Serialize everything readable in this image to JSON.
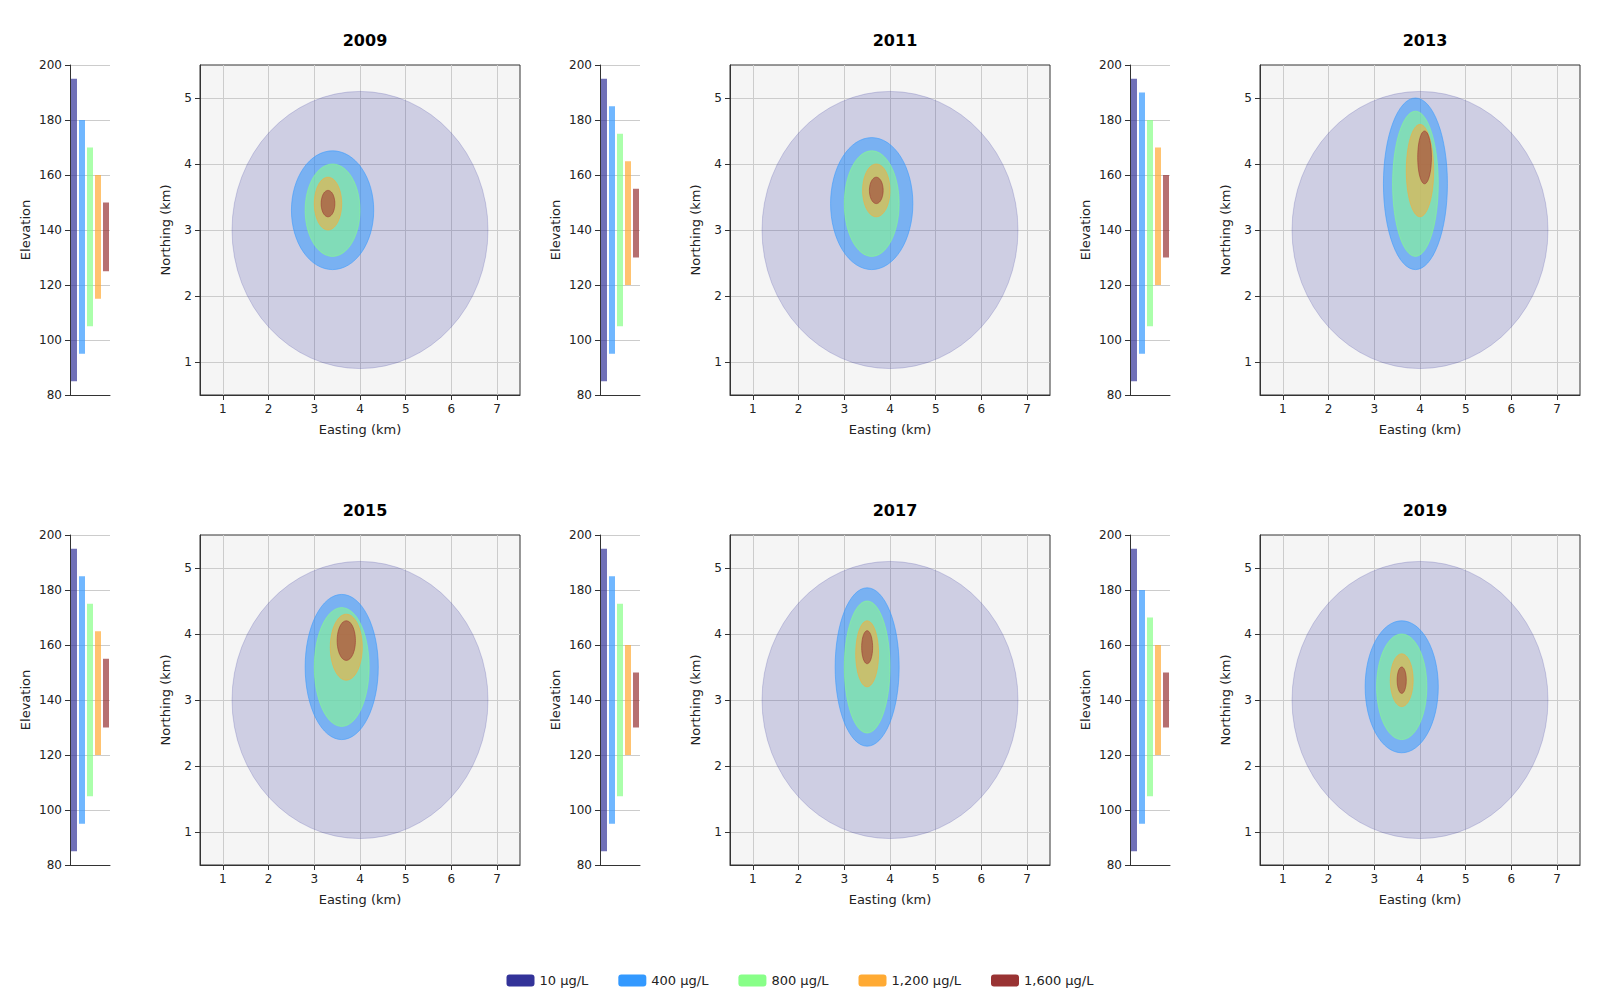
{
  "chart_data": {
    "type": "isosurface",
    "x_label": "Easting (km)",
    "y_label": "Northing (km)",
    "z_label": "Elevation",
    "xlim": [
      0.5,
      7.5
    ],
    "xticks": [
      1,
      2,
      3,
      4,
      5,
      6,
      7
    ],
    "ylim": [
      0.5,
      5.5
    ],
    "yticks": [
      1,
      2,
      3,
      4,
      5
    ],
    "zlim": [
      80,
      200
    ],
    "zticks": [
      80,
      100,
      120,
      140,
      160,
      180,
      200
    ],
    "grid": true,
    "legend": "bottom",
    "levels": [
      {
        "name": "10 µg/L",
        "color": "#333399"
      },
      {
        "name": "400 µg/L",
        "color": "#3399ff"
      },
      {
        "name": "800 µg/L",
        "color": "#88ff88"
      },
      {
        "name": "1,200 µg/L",
        "color": "#ffaa33"
      },
      {
        "name": "1,600 µg/L",
        "color": "#993333"
      }
    ],
    "panels": [
      {
        "title": "2009",
        "plumes": [
          {
            "level": "10 µg/L",
            "easting": 4.0,
            "northing": 3.0,
            "easting_radius": 2.8,
            "northing_radius": 2.1,
            "elevation": [
              85,
              195
            ]
          },
          {
            "level": "400 µg/L",
            "easting": 3.4,
            "northing": 3.3,
            "easting_radius": 0.9,
            "northing_radius": 0.9,
            "elevation": [
              95,
              180
            ]
          },
          {
            "level": "800 µg/L",
            "easting": 3.4,
            "northing": 3.3,
            "easting_radius": 0.6,
            "northing_radius": 0.7,
            "elevation": [
              105,
              170
            ]
          },
          {
            "level": "1,200 µg/L",
            "easting": 3.3,
            "northing": 3.4,
            "easting_radius": 0.3,
            "northing_radius": 0.4,
            "elevation": [
              115,
              160
            ]
          },
          {
            "level": "1,600 µg/L",
            "easting": 3.3,
            "northing": 3.4,
            "easting_radius": 0.15,
            "northing_radius": 0.2,
            "elevation": [
              125,
              150
            ]
          }
        ]
      },
      {
        "title": "2011",
        "plumes": [
          {
            "level": "10 µg/L",
            "easting": 4.0,
            "northing": 3.0,
            "easting_radius": 2.8,
            "northing_radius": 2.1,
            "elevation": [
              85,
              195
            ]
          },
          {
            "level": "400 µg/L",
            "easting": 3.6,
            "northing": 3.4,
            "easting_radius": 0.9,
            "northing_radius": 1.0,
            "elevation": [
              95,
              185
            ]
          },
          {
            "level": "800 µg/L",
            "easting": 3.6,
            "northing": 3.4,
            "easting_radius": 0.6,
            "northing_radius": 0.8,
            "elevation": [
              105,
              175
            ]
          },
          {
            "level": "1,200 µg/L",
            "easting": 3.7,
            "northing": 3.6,
            "easting_radius": 0.3,
            "northing_radius": 0.4,
            "elevation": [
              120,
              165
            ]
          },
          {
            "level": "1,600 µg/L",
            "easting": 3.7,
            "northing": 3.6,
            "easting_radius": 0.15,
            "northing_radius": 0.2,
            "elevation": [
              130,
              155
            ]
          }
        ]
      },
      {
        "title": "2013",
        "plumes": [
          {
            "level": "10 µg/L",
            "easting": 4.0,
            "northing": 3.0,
            "easting_radius": 2.8,
            "northing_radius": 2.1,
            "elevation": [
              85,
              195
            ]
          },
          {
            "level": "400 µg/L",
            "easting": 3.9,
            "northing": 3.7,
            "easting_radius": 0.7,
            "northing_radius": 1.3,
            "elevation": [
              95,
              190
            ]
          },
          {
            "level": "800 µg/L",
            "easting": 3.9,
            "northing": 3.7,
            "easting_radius": 0.5,
            "northing_radius": 1.1,
            "elevation": [
              105,
              180
            ]
          },
          {
            "level": "1,200 µg/L",
            "easting": 4.0,
            "northing": 3.9,
            "easting_radius": 0.3,
            "northing_radius": 0.7,
            "elevation": [
              120,
              170
            ]
          },
          {
            "level": "1,600 µg/L",
            "easting": 4.1,
            "northing": 4.1,
            "easting_radius": 0.15,
            "northing_radius": 0.4,
            "elevation": [
              130,
              160
            ]
          }
        ]
      },
      {
        "title": "2015",
        "plumes": [
          {
            "level": "10 µg/L",
            "easting": 4.0,
            "northing": 3.0,
            "easting_radius": 2.8,
            "northing_radius": 2.1,
            "elevation": [
              85,
              195
            ]
          },
          {
            "level": "400 µg/L",
            "easting": 3.6,
            "northing": 3.5,
            "easting_radius": 0.8,
            "northing_radius": 1.1,
            "elevation": [
              95,
              185
            ]
          },
          {
            "level": "800 µg/L",
            "easting": 3.6,
            "northing": 3.5,
            "easting_radius": 0.6,
            "northing_radius": 0.9,
            "elevation": [
              105,
              175
            ]
          },
          {
            "level": "1,200 µg/L",
            "easting": 3.7,
            "northing": 3.8,
            "easting_radius": 0.35,
            "northing_radius": 0.5,
            "elevation": [
              120,
              165
            ]
          },
          {
            "level": "1,600 µg/L",
            "easting": 3.7,
            "northing": 3.9,
            "easting_radius": 0.2,
            "northing_radius": 0.3,
            "elevation": [
              130,
              155
            ]
          }
        ]
      },
      {
        "title": "2017",
        "plumes": [
          {
            "level": "10 µg/L",
            "easting": 4.0,
            "northing": 3.0,
            "easting_radius": 2.8,
            "northing_radius": 2.1,
            "elevation": [
              85,
              195
            ]
          },
          {
            "level": "400 µg/L",
            "easting": 3.5,
            "northing": 3.5,
            "easting_radius": 0.7,
            "northing_radius": 1.2,
            "elevation": [
              95,
              185
            ]
          },
          {
            "level": "800 µg/L",
            "easting": 3.5,
            "northing": 3.5,
            "easting_radius": 0.5,
            "northing_radius": 1.0,
            "elevation": [
              105,
              175
            ]
          },
          {
            "level": "1,200 µg/L",
            "easting": 3.5,
            "northing": 3.7,
            "easting_radius": 0.25,
            "northing_radius": 0.5,
            "elevation": [
              120,
              160
            ]
          },
          {
            "level": "1,600 µg/L",
            "easting": 3.5,
            "northing": 3.8,
            "easting_radius": 0.12,
            "northing_radius": 0.25,
            "elevation": [
              130,
              150
            ]
          }
        ]
      },
      {
        "title": "2019",
        "plumes": [
          {
            "level": "10 µg/L",
            "easting": 4.0,
            "northing": 3.0,
            "easting_radius": 2.8,
            "northing_radius": 2.1,
            "elevation": [
              85,
              195
            ]
          },
          {
            "level": "400 µg/L",
            "easting": 3.6,
            "northing": 3.2,
            "easting_radius": 0.8,
            "northing_radius": 1.0,
            "elevation": [
              95,
              180
            ]
          },
          {
            "level": "800 µg/L",
            "easting": 3.6,
            "northing": 3.2,
            "easting_radius": 0.55,
            "northing_radius": 0.8,
            "elevation": [
              105,
              170
            ]
          },
          {
            "level": "1,200 µg/L",
            "easting": 3.6,
            "northing": 3.3,
            "easting_radius": 0.25,
            "northing_radius": 0.4,
            "elevation": [
              120,
              160
            ]
          },
          {
            "level": "1,600 µg/L",
            "easting": 3.6,
            "northing": 3.3,
            "easting_radius": 0.1,
            "northing_radius": 0.2,
            "elevation": [
              130,
              150
            ]
          }
        ]
      }
    ]
  }
}
